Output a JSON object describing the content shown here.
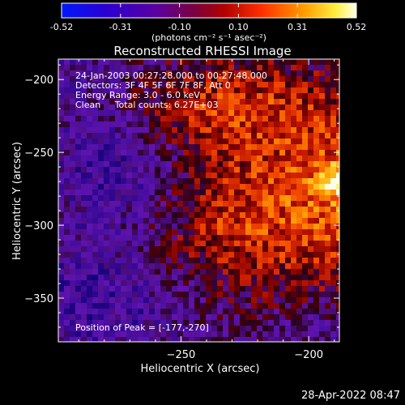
{
  "chart_data": {
    "type": "heatmap",
    "title": "Reconstructed RHESSI Image",
    "xlabel": "Heliocentric X (arcsec)",
    "ylabel": "Heliocentric Y (arcsec)",
    "xlim": [
      -298,
      -188
    ],
    "ylim": [
      -380,
      -186
    ],
    "xticks": [
      -250,
      -200,
      -150
    ],
    "yticks": [
      -200,
      -250,
      -300,
      -350
    ],
    "colorbar": {
      "vmin": -0.52,
      "vmax": 0.52,
      "ticks": [
        "-0.52",
        "-0.31",
        "-0.10",
        "0.10",
        "0.31",
        "0.52"
      ],
      "units_label": "(photons cm⁻² s⁻¹ asec⁻²)",
      "colormap": "blue-purple-red-yellow-white"
    },
    "annotations": [
      "24-Jan-2003 00:27:28.000 to 00:27:48.000",
      "Detectors: 3F 4F 5F 6F 7F 8F, Att 0",
      "Energy Range: 3.0 - 6.0 keV",
      "Clean     Total counts: 6.27E+03"
    ],
    "peak_label": "Position of Peak = [-177,-270]",
    "peak": {
      "x": -177,
      "y": -270
    }
  },
  "footer": {
    "datetime": "28-Apr-2022 08:47"
  },
  "colors": {
    "background": "#000000",
    "text": "#ffffff"
  }
}
